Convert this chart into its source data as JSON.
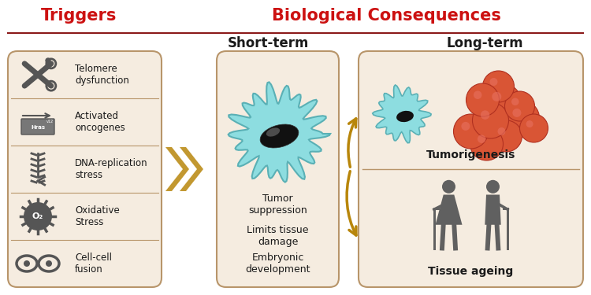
{
  "title_triggers": "Triggers",
  "title_bio_consequences": "Biological Consequences",
  "title_short_term": "Short-term",
  "title_long_term": "Long-term",
  "triggers": [
    "Telomere\ndysfunction",
    "Activated\noncogenes",
    "DNA-replication\nstress",
    "Oxidative\nStress",
    "Cell-cell\nfusion"
  ],
  "short_term_items": [
    "Tumor\nsuppression",
    "Limits tissue\ndamage",
    "Embryonic\ndevelopment"
  ],
  "long_term_top": "Tumorigenesis",
  "long_term_bot": "Tissue ageing",
  "bg_color": "#ffffff",
  "panel_bg": "#f5ece0",
  "panel_border": "#b8956a",
  "title_color_red": "#cc1111",
  "dark": "#1a1a1a",
  "arrow_color": "#b8860b",
  "icon_color": "#555555",
  "cell_cyan": "#8ddde0",
  "cell_border_cyan": "#5ab0b5",
  "nucleus_color": "#111111",
  "tumor_color": "#d95535",
  "tumor_border": "#b03020",
  "header_line_color": "#8b1a1a",
  "person_color": "#606060"
}
